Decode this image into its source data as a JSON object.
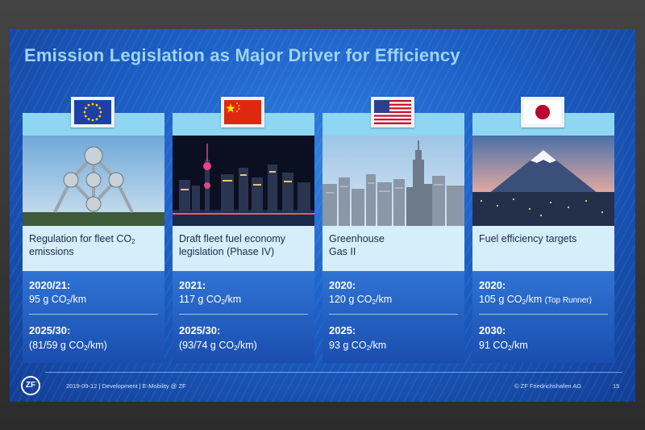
{
  "title": "Emission Legislation as Major Driver for Efficiency",
  "cards": [
    {
      "flag": "eu-flag-icon",
      "photo": "atomium-photo",
      "desc_line1": "Regulation for fleet CO",
      "desc_sub1": "2",
      "desc_line2": "emissions",
      "year1": "2020/21:",
      "val1_pre": "95 g CO",
      "val1_sub": "2",
      "val1_post": "/km",
      "val1_note": "",
      "year2": "2025/30:",
      "val2_pre": "(81/59 g CO",
      "val2_sub": "2",
      "val2_post": "/km)"
    },
    {
      "flag": "china-flag-icon",
      "photo": "shanghai-skyline-photo",
      "desc_line1": "Draft fleet fuel economy",
      "desc_sub1": "",
      "desc_line2": "legislation (Phase IV)",
      "year1": "2021:",
      "val1_pre": "117 g CO",
      "val1_sub": "2",
      "val1_post": "/km",
      "val1_note": "",
      "year2": "2025/30:",
      "val2_pre": "(93/74 g CO",
      "val2_sub": "2",
      "val2_post": "/km)"
    },
    {
      "flag": "usa-flag-icon",
      "photo": "new-york-skyline-photo",
      "desc_line1": "Greenhouse",
      "desc_sub1": "",
      "desc_line2": "Gas II",
      "year1": "2020:",
      "val1_pre": "120 g CO",
      "val1_sub": "2",
      "val1_post": "/km",
      "val1_note": "",
      "year2": "2025:",
      "val2_pre": "93 g CO",
      "val2_sub": "2",
      "val2_post": "/km"
    },
    {
      "flag": "japan-flag-icon",
      "photo": "mount-fuji-photo",
      "desc_line1": "Fuel efficiency targets",
      "desc_sub1": "",
      "desc_line2": "",
      "year1": "2020:",
      "val1_pre": "105 g CO",
      "val1_sub": "2",
      "val1_post": "/km",
      "val1_note": "(Top Runner)",
      "year2": "2030:",
      "val2_pre": "91 CO",
      "val2_sub": "2",
      "val2_post": "/km"
    }
  ],
  "footer": {
    "logo": "ZF",
    "left": "2019-09-12 | Development | E-Mobility @ ZF",
    "right": "© ZF Friedrichshafen AG",
    "page": "15"
  },
  "colors": {
    "title": "#9fd2f4",
    "card_band": "#8fd6f3",
    "desc_bg": "#d6eef9",
    "values_bg": "#1a4eae"
  }
}
